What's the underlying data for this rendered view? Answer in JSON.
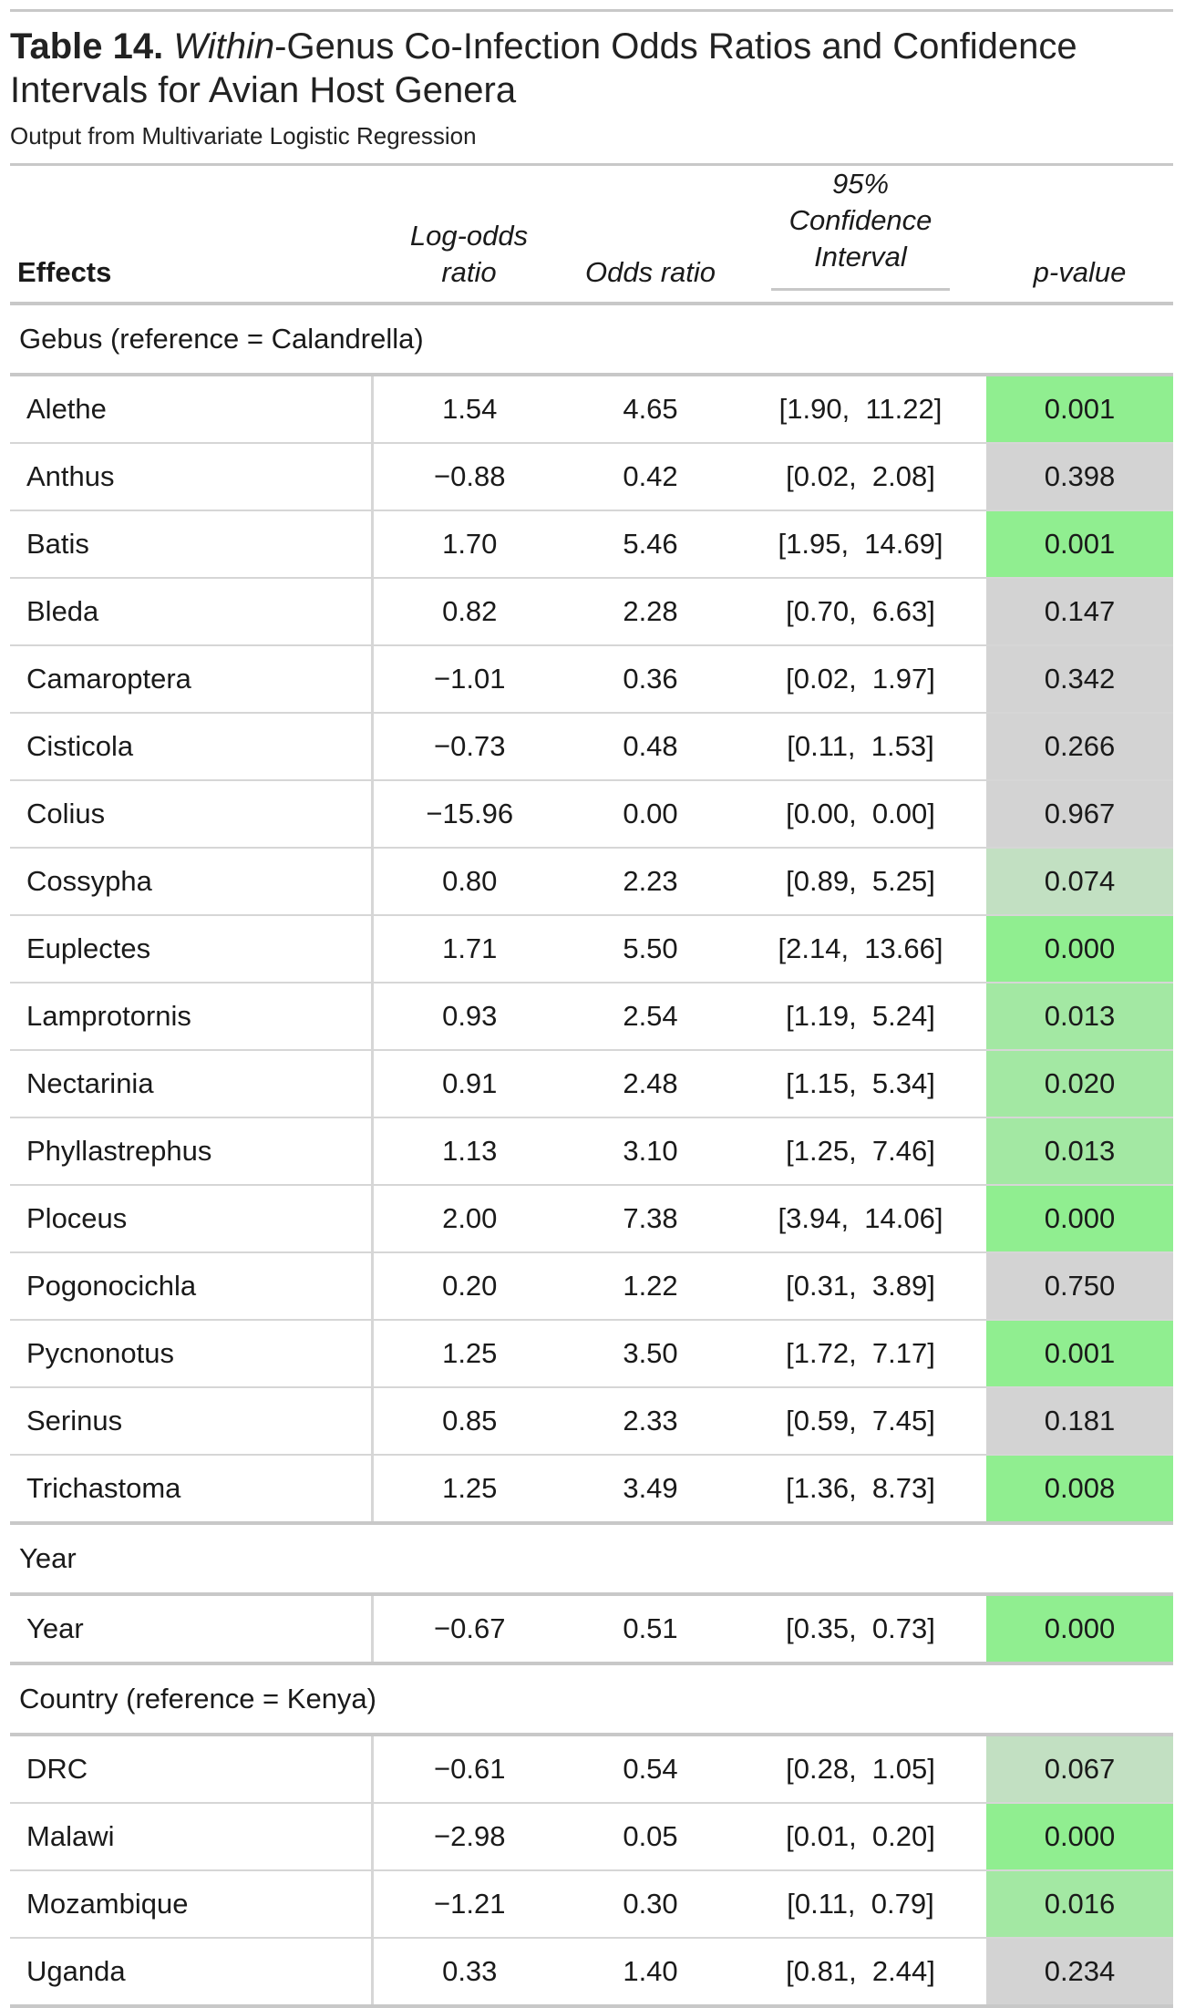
{
  "header": {
    "title_bold": "Table 14.",
    "title_italic": "Within",
    "title_rest": "-Genus Co-Infection Odds Ratios and Confidence Intervals for Avian Host Genera",
    "subtitle": "Output from Multivariate Logistic Regression"
  },
  "columns": {
    "effects": "Effects",
    "logodds_line1": "Log-odds",
    "logodds_line2": "ratio",
    "odds": "Odds ratio",
    "ci_line1": "95% Confidence",
    "ci_line2": "Interval",
    "pvalue": "p-value"
  },
  "colors": {
    "sig_strong": "#90ee90",
    "sig_mid": "#a3e8a3",
    "sig_weak": "#c2e0c2",
    "nonsig": "#d3d3d3",
    "rule": "#c8c8c8"
  },
  "groups": [
    {
      "label": "Gebus (reference = Calandrella)",
      "rows": [
        {
          "effect": "Alethe",
          "logodds": "1.54",
          "odds": "4.65",
          "ci": "[1.90,  11.22]",
          "p": "0.001",
          "shade": "sig_strong"
        },
        {
          "effect": "Anthus",
          "logodds": "−0.88",
          "odds": "0.42",
          "ci": "[0.02,  2.08]",
          "p": "0.398",
          "shade": "nonsig"
        },
        {
          "effect": "Batis",
          "logodds": "1.70",
          "odds": "5.46",
          "ci": "[1.95,  14.69]",
          "p": "0.001",
          "shade": "sig_strong"
        },
        {
          "effect": "Bleda",
          "logodds": "0.82",
          "odds": "2.28",
          "ci": "[0.70,  6.63]",
          "p": "0.147",
          "shade": "nonsig"
        },
        {
          "effect": "Camaroptera",
          "logodds": "−1.01",
          "odds": "0.36",
          "ci": "[0.02,  1.97]",
          "p": "0.342",
          "shade": "nonsig"
        },
        {
          "effect": "Cisticola",
          "logodds": "−0.73",
          "odds": "0.48",
          "ci": "[0.11,  1.53]",
          "p": "0.266",
          "shade": "nonsig"
        },
        {
          "effect": "Colius",
          "logodds": "−15.96",
          "odds": "0.00",
          "ci": "[0.00,  0.00]",
          "p": "0.967",
          "shade": "nonsig"
        },
        {
          "effect": "Cossypha",
          "logodds": "0.80",
          "odds": "2.23",
          "ci": "[0.89,  5.25]",
          "p": "0.074",
          "shade": "sig_weak"
        },
        {
          "effect": "Euplectes",
          "logodds": "1.71",
          "odds": "5.50",
          "ci": "[2.14,  13.66]",
          "p": "0.000",
          "shade": "sig_strong"
        },
        {
          "effect": "Lamprotornis",
          "logodds": "0.93",
          "odds": "2.54",
          "ci": "[1.19,  5.24]",
          "p": "0.013",
          "shade": "sig_mid"
        },
        {
          "effect": "Nectarinia",
          "logodds": "0.91",
          "odds": "2.48",
          "ci": "[1.15,  5.34]",
          "p": "0.020",
          "shade": "sig_mid"
        },
        {
          "effect": "Phyllastrephus",
          "logodds": "1.13",
          "odds": "3.10",
          "ci": "[1.25,  7.46]",
          "p": "0.013",
          "shade": "sig_mid"
        },
        {
          "effect": "Ploceus",
          "logodds": "2.00",
          "odds": "7.38",
          "ci": "[3.94,  14.06]",
          "p": "0.000",
          "shade": "sig_strong"
        },
        {
          "effect": "Pogonocichla",
          "logodds": "0.20",
          "odds": "1.22",
          "ci": "[0.31,  3.89]",
          "p": "0.750",
          "shade": "nonsig"
        },
        {
          "effect": "Pycnonotus",
          "logodds": "1.25",
          "odds": "3.50",
          "ci": "[1.72,  7.17]",
          "p": "0.001",
          "shade": "sig_strong"
        },
        {
          "effect": "Serinus",
          "logodds": "0.85",
          "odds": "2.33",
          "ci": "[0.59,  7.45]",
          "p": "0.181",
          "shade": "nonsig"
        },
        {
          "effect": "Trichastoma",
          "logodds": "1.25",
          "odds": "3.49",
          "ci": "[1.36,  8.73]",
          "p": "0.008",
          "shade": "sig_strong"
        }
      ]
    },
    {
      "label": "Year",
      "rows": [
        {
          "effect": "Year",
          "logodds": "−0.67",
          "odds": "0.51",
          "ci": "[0.35,  0.73]",
          "p": "0.000",
          "shade": "sig_strong"
        }
      ]
    },
    {
      "label": "Country (reference = Kenya)",
      "rows": [
        {
          "effect": "DRC",
          "logodds": "−0.61",
          "odds": "0.54",
          "ci": "[0.28,  1.05]",
          "p": "0.067",
          "shade": "sig_weak"
        },
        {
          "effect": "Malawi",
          "logodds": "−2.98",
          "odds": "0.05",
          "ci": "[0.01,  0.20]",
          "p": "0.000",
          "shade": "sig_strong"
        },
        {
          "effect": "Mozambique",
          "logodds": "−1.21",
          "odds": "0.30",
          "ci": "[0.11,  0.79]",
          "p": "0.016",
          "shade": "sig_mid"
        },
        {
          "effect": "Uganda",
          "logodds": "0.33",
          "odds": "1.40",
          "ci": "[0.81,  2.44]",
          "p": "0.234",
          "shade": "nonsig"
        }
      ]
    }
  ]
}
